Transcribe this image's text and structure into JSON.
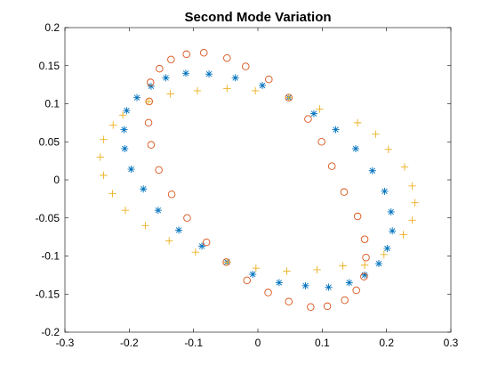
{
  "chart_data": {
    "type": "scatter",
    "title": "Second Mode Variation",
    "xlabel": "",
    "ylabel": "",
    "xlim": [
      -0.3,
      0.3
    ],
    "ylim": [
      -0.2,
      0.2
    ],
    "xticks": [
      -0.3,
      -0.2,
      -0.1,
      0,
      0.1,
      0.2,
      0.3
    ],
    "yticks": [
      -0.2,
      -0.15,
      -0.1,
      -0.05,
      0,
      0.05,
      0.1,
      0.15,
      0.2
    ],
    "xtick_labels": [
      "-0.3",
      "-0.2",
      "-0.1",
      "0",
      "0.1",
      "0.2",
      "0.3"
    ],
    "ytick_labels": [
      "-0.2",
      "-0.15",
      "-0.1",
      "-0.05",
      "0",
      "0.05",
      "0.1",
      "0.15",
      "0.2"
    ],
    "grid": false,
    "legend": "none",
    "series": [
      {
        "marker": "asterisk",
        "color": "#0072BD",
        "points": [
          [
            -0.204,
            0.091
          ],
          [
            -0.188,
            0.108
          ],
          [
            -0.166,
            0.123
          ],
          [
            -0.143,
            0.134
          ],
          [
            -0.112,
            0.14
          ],
          [
            -0.076,
            0.139
          ],
          [
            -0.035,
            0.134
          ],
          [
            0.007,
            0.124
          ],
          [
            0.048,
            0.108
          ],
          [
            0.087,
            0.087
          ],
          [
            0.121,
            0.066
          ],
          [
            0.152,
            0.041
          ],
          [
            0.178,
            0.012
          ],
          [
            0.197,
            -0.015
          ],
          [
            0.207,
            -0.042
          ],
          [
            0.209,
            -0.067
          ],
          [
            0.201,
            -0.09
          ],
          [
            0.188,
            -0.11
          ],
          [
            0.166,
            -0.125
          ],
          [
            0.142,
            -0.135
          ],
          [
            0.11,
            -0.141
          ],
          [
            0.074,
            -0.139
          ],
          [
            0.033,
            -0.135
          ],
          [
            -0.008,
            -0.124
          ],
          [
            -0.048,
            -0.108
          ],
          [
            -0.087,
            -0.087
          ],
          [
            -0.123,
            -0.066
          ],
          [
            -0.155,
            -0.04
          ],
          [
            -0.178,
            -0.012
          ],
          [
            -0.197,
            0.014
          ],
          [
            -0.207,
            0.041
          ],
          [
            -0.208,
            0.066
          ]
        ]
      },
      {
        "marker": "circle",
        "color": "#D95319",
        "points": [
          [
            -0.167,
            0.128
          ],
          [
            -0.153,
            0.146
          ],
          [
            -0.135,
            0.158
          ],
          [
            -0.111,
            0.165
          ],
          [
            -0.084,
            0.167
          ],
          [
            -0.048,
            0.16
          ],
          [
            -0.019,
            0.149
          ],
          [
            0.017,
            0.132
          ],
          [
            0.048,
            0.108
          ],
          [
            0.078,
            0.08
          ],
          [
            0.099,
            0.05
          ],
          [
            0.115,
            0.018
          ],
          [
            0.134,
            -0.016
          ],
          [
            0.155,
            -0.048
          ],
          [
            0.166,
            -0.078
          ],
          [
            0.168,
            -0.102
          ],
          [
            0.165,
            -0.127
          ],
          [
            0.153,
            -0.145
          ],
          [
            0.135,
            -0.158
          ],
          [
            0.108,
            -0.166
          ],
          [
            0.082,
            -0.167
          ],
          [
            0.048,
            -0.16
          ],
          [
            0.016,
            -0.148
          ],
          [
            -0.017,
            -0.132
          ],
          [
            -0.049,
            -0.108
          ],
          [
            -0.08,
            -0.082
          ],
          [
            -0.11,
            -0.05
          ],
          [
            -0.134,
            -0.019
          ],
          [
            -0.154,
            0.013
          ],
          [
            -0.166,
            0.046
          ],
          [
            -0.17,
            0.075
          ],
          [
            -0.169,
            0.103
          ]
        ]
      },
      {
        "marker": "plus",
        "color": "#EDB120",
        "points": [
          [
            -0.225,
            0.072
          ],
          [
            -0.21,
            0.085
          ],
          [
            -0.17,
            0.103
          ],
          [
            -0.136,
            0.113
          ],
          [
            -0.094,
            0.117
          ],
          [
            -0.048,
            0.12
          ],
          [
            -0.004,
            0.117
          ],
          [
            0.048,
            0.108
          ],
          [
            0.096,
            0.093
          ],
          [
            0.155,
            0.075
          ],
          [
            0.183,
            0.06
          ],
          [
            0.203,
            0.04
          ],
          [
            0.228,
            0.017
          ],
          [
            0.24,
            -0.008
          ],
          [
            0.244,
            -0.03
          ],
          [
            0.24,
            -0.053
          ],
          [
            0.226,
            -0.072
          ],
          [
            0.196,
            -0.098
          ],
          [
            0.166,
            -0.112
          ],
          [
            0.132,
            -0.113
          ],
          [
            0.092,
            -0.118
          ],
          [
            0.045,
            -0.12
          ],
          [
            -0.003,
            -0.116
          ],
          [
            -0.048,
            -0.108
          ],
          [
            -0.097,
            -0.095
          ],
          [
            -0.138,
            -0.08
          ],
          [
            -0.175,
            -0.06
          ],
          [
            -0.206,
            -0.04
          ],
          [
            -0.226,
            -0.018
          ],
          [
            -0.24,
            0.006
          ],
          [
            -0.245,
            0.03
          ],
          [
            -0.24,
            0.053
          ]
        ]
      }
    ]
  }
}
